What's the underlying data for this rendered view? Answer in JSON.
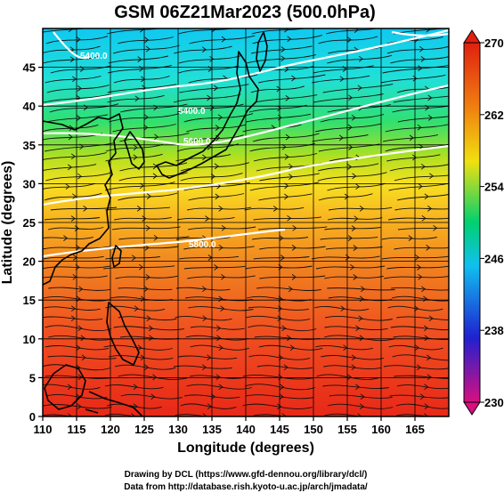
{
  "title": "GSM 06Z21Mar2023 (500.0hPa)",
  "chart_data": {
    "type": "heatmap",
    "title": "GSM 06Z21Mar2023 (500.0hPa)",
    "xlabel": "Longitude (degrees)",
    "ylabel": "Latitude  (degrees)",
    "xlim": [
      110,
      170
    ],
    "ylim": [
      0,
      50
    ],
    "x_ticks": [
      "110",
      "115",
      "120",
      "125",
      "130",
      "135",
      "140",
      "145",
      "150",
      "155",
      "160",
      "165"
    ],
    "y_ticks": [
      "0",
      "5",
      "10",
      "15",
      "20",
      "25",
      "30",
      "35",
      "40",
      "45"
    ],
    "colorbar": {
      "min": 230,
      "max": 270,
      "tick_labels": [
        "270",
        "262",
        "254",
        "246",
        "238",
        "230"
      ],
      "colors": [
        "#d81080",
        "#2020d0",
        "#10c0f0",
        "#00d070",
        "#f0e010",
        "#f08010",
        "#e02010"
      ]
    },
    "contour_labels": [
      "5400.0",
      "5600.0",
      "5800.0"
    ],
    "overlays": [
      "coastlines",
      "wind streamlines",
      "height contours",
      "grid"
    ]
  },
  "credits": {
    "line1": "Drawing by DCL (https://www.gfd-dennou.org/library/dcl/)",
    "line2": "Data from http://database.rish.kyoto-u.ac.jp/arch/jmadata/"
  }
}
